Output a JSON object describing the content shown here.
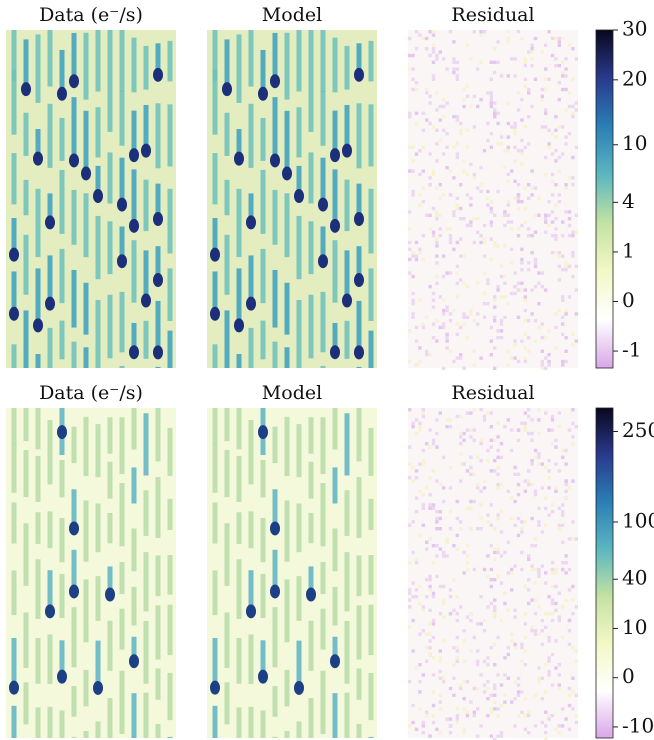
{
  "chart_data": [
    {
      "type": "image-grid",
      "panel_titles": [
        "Data (e⁻/s)",
        "Model",
        "Residual"
      ],
      "colorbar": {
        "ylim": [
          -1.8,
          30
        ],
        "yticks": [
          -1,
          0,
          1,
          4,
          10,
          20,
          30
        ],
        "scale": "sqrt",
        "colors": [
          "#d9a6e8",
          "#ffffff",
          "#f3f8c6",
          "#c4e2a2",
          "#5bb7c0",
          "#2a7fb6",
          "#2a3a8e",
          "#08081e"
        ]
      }
    },
    {
      "type": "image-grid",
      "panel_titles": [
        "Data (e⁻/s)",
        "Model",
        "Residual"
      ],
      "colorbar": {
        "ylim": [
          -15,
          300
        ],
        "yticks": [
          -10,
          0,
          10,
          40,
          100,
          250
        ],
        "scale": "sqrt",
        "colors": [
          "#d9a6e8",
          "#ffffff",
          "#f3f8c6",
          "#c4e2a2",
          "#5bb7c0",
          "#2a7fb6",
          "#2a3a8e",
          "#08081e"
        ]
      }
    }
  ]
}
